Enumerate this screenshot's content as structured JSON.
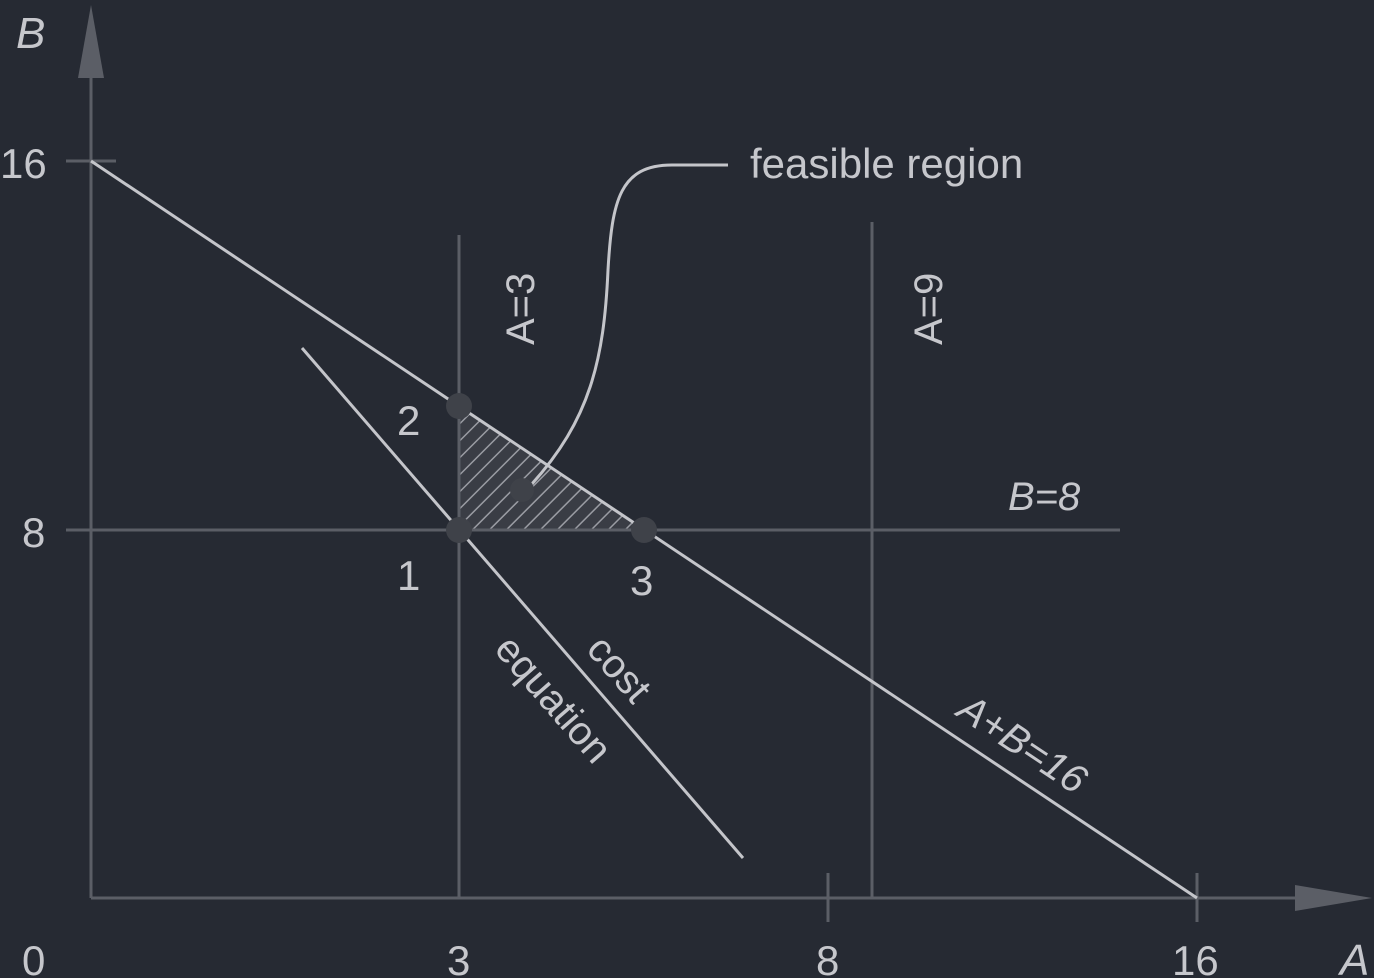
{
  "axes": {
    "x_label": "A",
    "y_label": "B",
    "origin_label": "0",
    "x_ticks": [
      "3",
      "8",
      "16"
    ],
    "y_ticks": [
      "8",
      "16"
    ]
  },
  "lines": {
    "a3": "A=3",
    "a9": "A=9",
    "b8": "B=8",
    "sum": "A+B=16",
    "cost_word1": "cost",
    "cost_word2": "equation"
  },
  "points": [
    "1",
    "2",
    "3"
  ],
  "callout": "feasible region",
  "colors": {
    "background": "#262a33",
    "light_line": "#c4c5ca",
    "dark_line": "#5b5e66",
    "text": "#c6c7cc",
    "marker": "#3f4249"
  }
}
